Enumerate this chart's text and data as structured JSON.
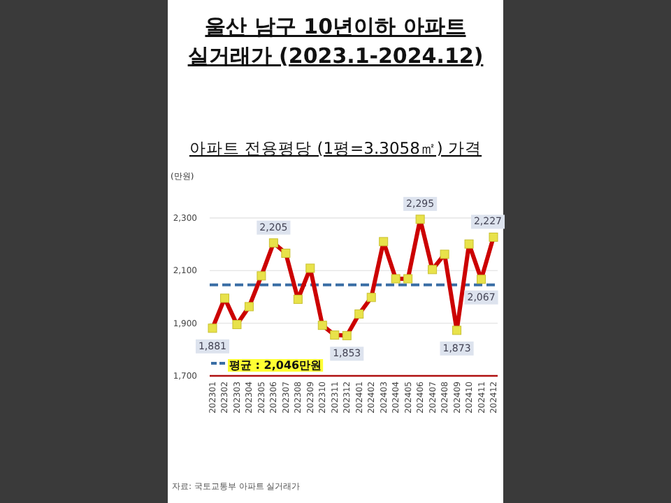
{
  "chart_data": {
    "type": "line",
    "title": "울산 남구 10년이하 아파트 실거래가 (2023.1-2024.12)",
    "subtitle": "아파트 전용평당 (1평=3.3058㎡) 가격",
    "ylabel": "(만원)",
    "categories": [
      "202301",
      "202302",
      "202303",
      "202304",
      "202305",
      "202306",
      "202307",
      "202308",
      "202309",
      "202310",
      "202311",
      "202312",
      "202401",
      "202402",
      "202403",
      "202404",
      "202405",
      "202406",
      "202407",
      "202408",
      "202409",
      "202410",
      "202411",
      "202412"
    ],
    "series": [
      {
        "color": "#cc0000",
        "values": [
          1881,
          1995,
          1895,
          1963,
          2080,
          2205,
          2166,
          1991,
          2109,
          1892,
          1855,
          1853,
          1935,
          1998,
          2210,
          2069,
          2069,
          2295,
          2104,
          2162,
          1873,
          2201,
          2067,
          2227
        ],
        "value_labels": [
          "1,881",
          null,
          null,
          null,
          null,
          "2,205",
          null,
          null,
          null,
          null,
          null,
          "1,853",
          null,
          null,
          null,
          null,
          null,
          "2,295",
          null,
          null,
          "1,873",
          null,
          "2,067",
          "2,227"
        ]
      }
    ],
    "ylim": [
      1700,
      2300
    ],
    "yticks": [
      {
        "value": 1700,
        "label": "1,700"
      },
      {
        "value": 1900,
        "label": "1,900"
      },
      {
        "value": 2100,
        "label": "2,100"
      },
      {
        "value": 2300,
        "label": "2,300"
      }
    ],
    "grid": "y",
    "marker": "square",
    "line_style": "solid",
    "ref_lines": [
      {
        "axis": "y",
        "value": 2046,
        "label": "평균 : 2,046만원",
        "color": "#3a6ea5",
        "line_style": "dashed"
      }
    ],
    "annotations": [
      "자료: 국토교통부 아파트 실거래가"
    ]
  }
}
